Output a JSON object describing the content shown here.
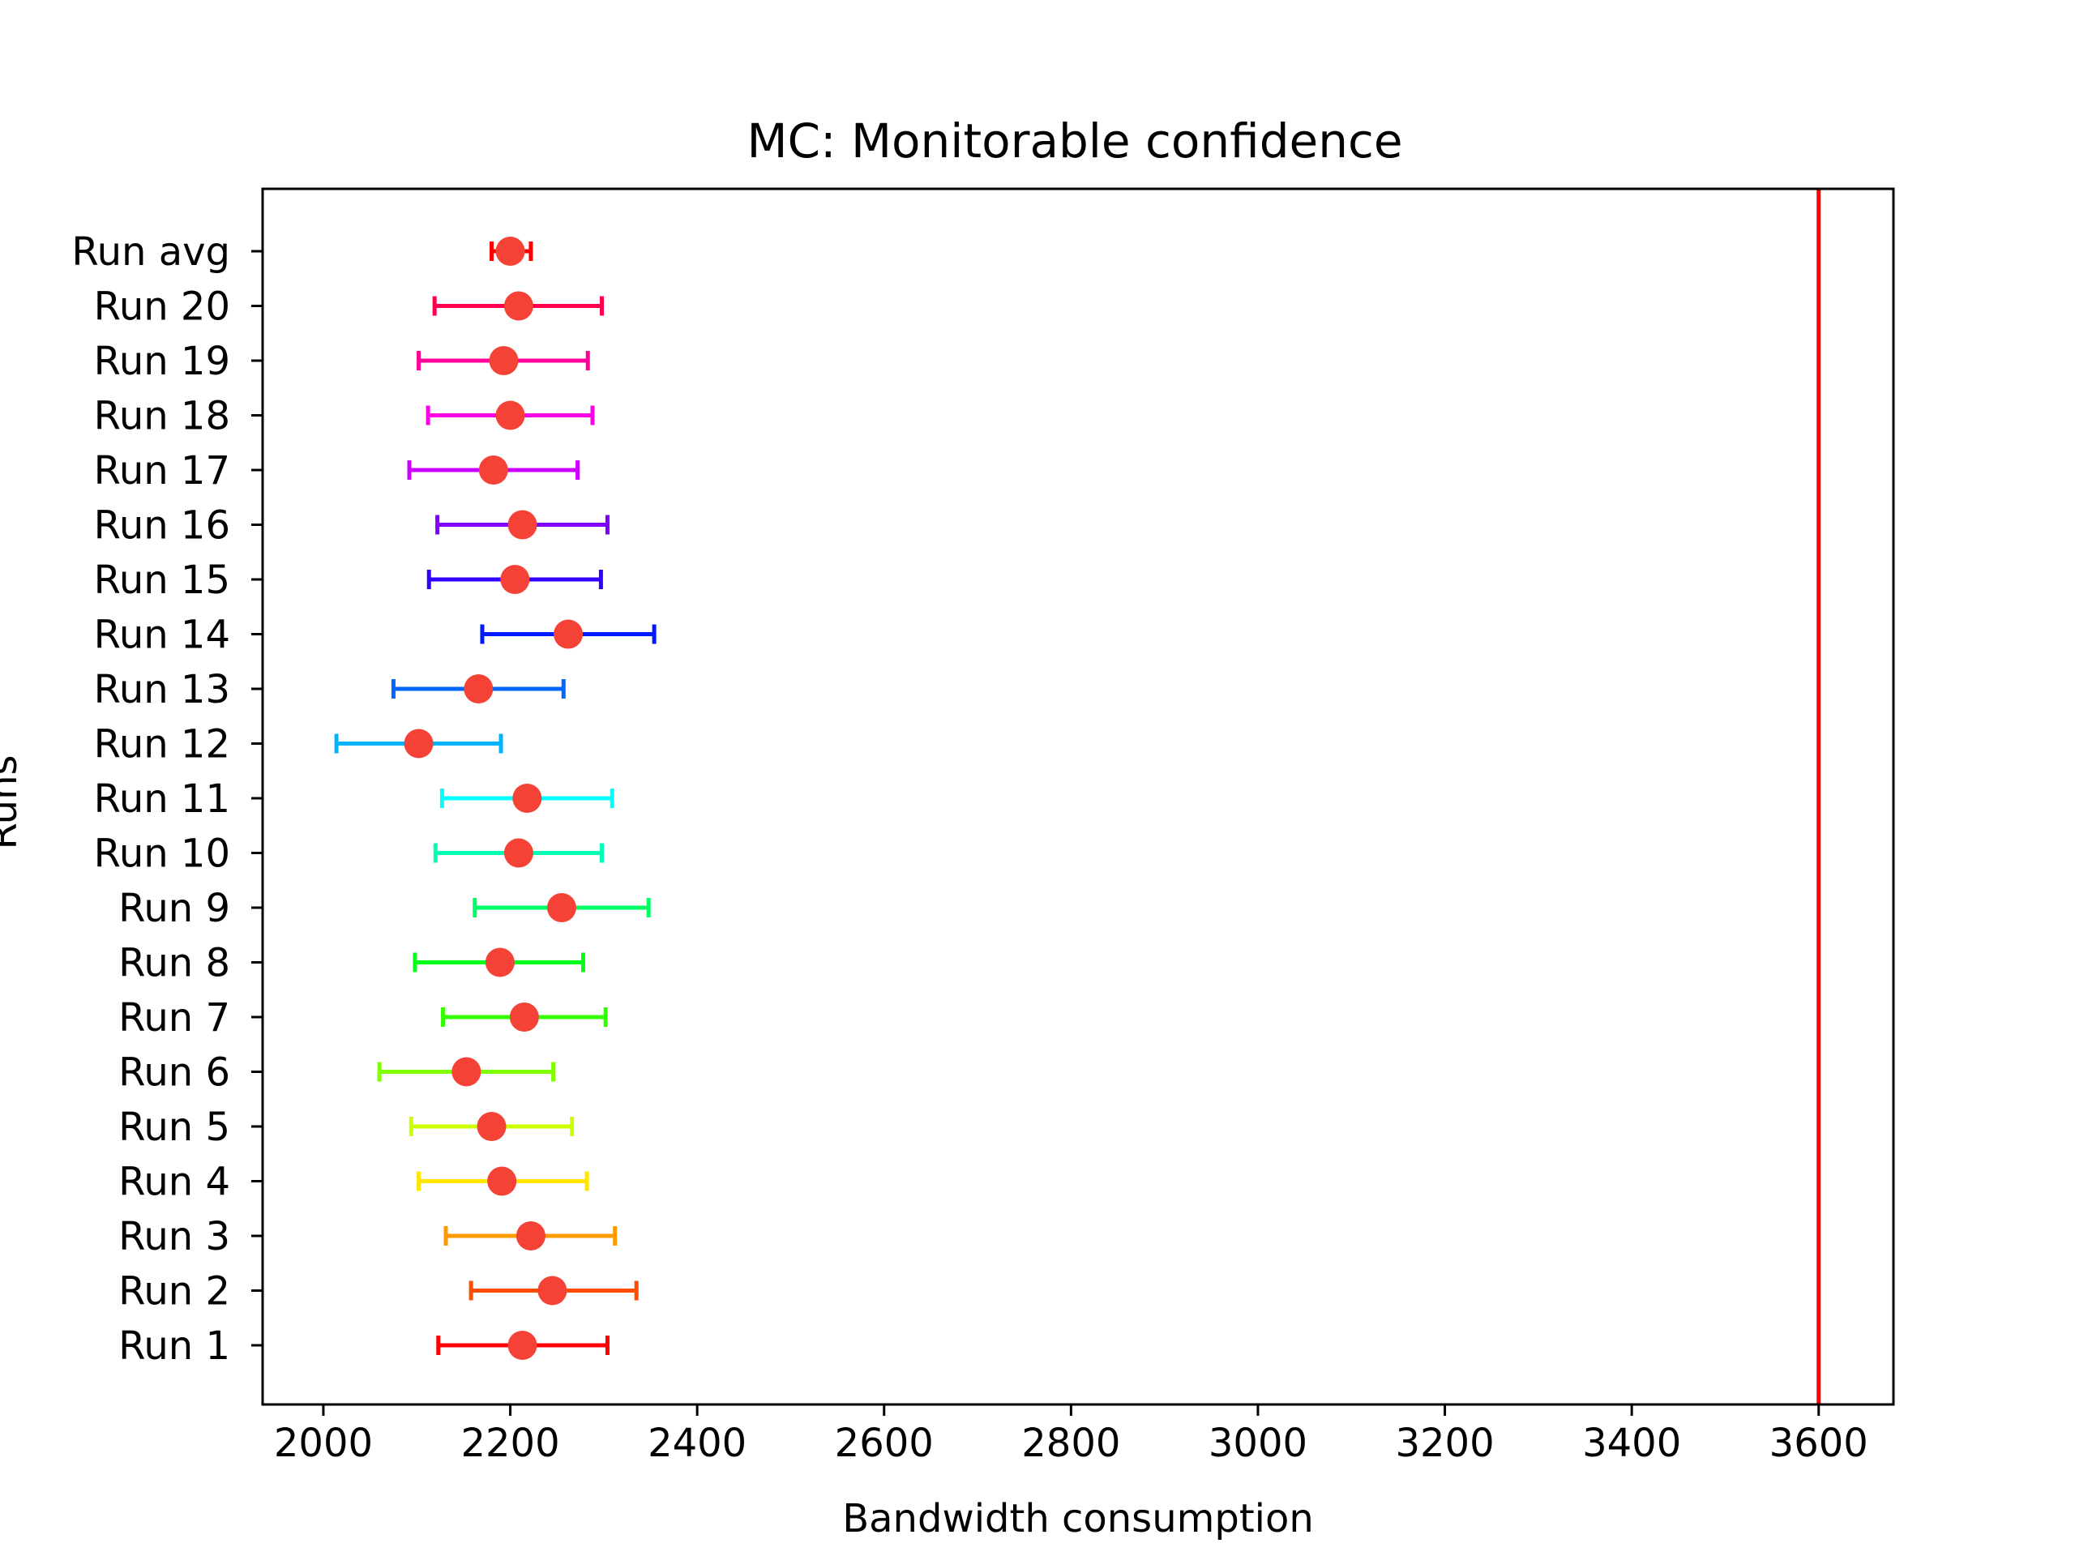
{
  "chart_data": {
    "type": "errorbar",
    "title": "MC: Monitorable confidence",
    "xlabel": "Bandwidth consumption",
    "ylabel": "Runs",
    "xlim": [
      1935,
      3680
    ],
    "xticks": [
      2000,
      2200,
      2400,
      2600,
      2800,
      3000,
      3200,
      3400,
      3600
    ],
    "grid": false,
    "reference_line": {
      "x": 3600,
      "color": "#ff0000"
    },
    "marker_color": "#f44336",
    "runs": [
      {
        "label": "Run 1",
        "mean": 2213,
        "low": 2123,
        "high": 2304,
        "color": "#ff0000"
      },
      {
        "label": "Run 2",
        "mean": 2245,
        "low": 2158,
        "high": 2335,
        "color": "#ff4d00"
      },
      {
        "label": "Run 3",
        "mean": 2222,
        "low": 2131,
        "high": 2312,
        "color": "#ff9900"
      },
      {
        "label": "Run 4",
        "mean": 2191,
        "low": 2102,
        "high": 2282,
        "color": "#ffe500"
      },
      {
        "label": "Run 5",
        "mean": 2180,
        "low": 2094,
        "high": 2266,
        "color": "#ccff00"
      },
      {
        "label": "Run 6",
        "mean": 2153,
        "low": 2060,
        "high": 2246,
        "color": "#80ff00"
      },
      {
        "label": "Run 7",
        "mean": 2215,
        "low": 2128,
        "high": 2302,
        "color": "#33ff00"
      },
      {
        "label": "Run 8",
        "mean": 2189,
        "low": 2098,
        "high": 2278,
        "color": "#00ff19"
      },
      {
        "label": "Run 9",
        "mean": 2255,
        "low": 2162,
        "high": 2348,
        "color": "#00ff66"
      },
      {
        "label": "Run 10",
        "mean": 2209,
        "low": 2120,
        "high": 2298,
        "color": "#00ffb2"
      },
      {
        "label": "Run 11",
        "mean": 2218,
        "low": 2127,
        "high": 2309,
        "color": "#00ffff"
      },
      {
        "label": "Run 12",
        "mean": 2102,
        "low": 2014,
        "high": 2190,
        "color": "#00b3ff"
      },
      {
        "label": "Run 13",
        "mean": 2166,
        "low": 2075,
        "high": 2257,
        "color": "#0066ff"
      },
      {
        "label": "Run 14",
        "mean": 2262,
        "low": 2170,
        "high": 2354,
        "color": "#001aff"
      },
      {
        "label": "Run 15",
        "mean": 2205,
        "low": 2113,
        "high": 2297,
        "color": "#3300ff"
      },
      {
        "label": "Run 16",
        "mean": 2213,
        "low": 2122,
        "high": 2304,
        "color": "#7f00ff"
      },
      {
        "label": "Run 17",
        "mean": 2182,
        "low": 2092,
        "high": 2272,
        "color": "#cc00ff"
      },
      {
        "label": "Run 18",
        "mean": 2200,
        "low": 2112,
        "high": 2288,
        "color": "#ff00e6"
      },
      {
        "label": "Run 19",
        "mean": 2193,
        "low": 2102,
        "high": 2283,
        "color": "#ff0099"
      },
      {
        "label": "Run 20",
        "mean": 2209,
        "low": 2119,
        "high": 2298,
        "color": "#ff004d"
      },
      {
        "label": "Run avg",
        "mean": 2200,
        "low": 2180,
        "high": 2222,
        "color": "#ff0000"
      }
    ]
  }
}
